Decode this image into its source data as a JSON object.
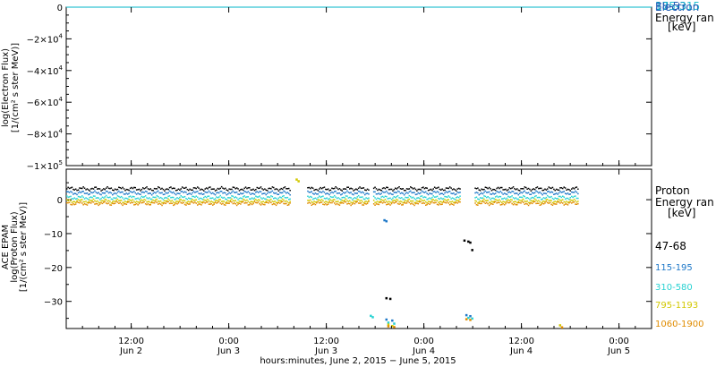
{
  "chart_data": [
    {
      "type": "line",
      "panel": "electron",
      "ylabel_lines": [
        "log(Electron Flux)",
        "[1/(cm² s ster MeV)]"
      ],
      "ylim": [
        -100000,
        0
      ],
      "yticks": [
        {
          "value": 0,
          "label": "0",
          "mant": "",
          "exp": ""
        },
        {
          "value": -20000,
          "label": "",
          "mant": "−2×10",
          "exp": "4"
        },
        {
          "value": -40000,
          "label": "",
          "mant": "−4×10",
          "exp": "4"
        },
        {
          "value": -60000,
          "label": "",
          "mant": "−6×10",
          "exp": "4"
        },
        {
          "value": -80000,
          "label": "",
          "mant": "−8×10",
          "exp": "4"
        },
        {
          "value": -100000,
          "label": "",
          "mant": "−1×10",
          "exp": "5"
        }
      ],
      "legend": {
        "lines": [
          "Electron",
          "Energy ran",
          "[keV]"
        ],
        "series_overlap": [
          "38-53",
          "175-315"
        ]
      },
      "series": [
        {
          "name": "38-53",
          "color": "#1e5ab4",
          "values": [
            [
              0,
              0
            ],
            [
              3.0,
              0
            ]
          ]
        },
        {
          "name": "175-315",
          "color": "#00b4c8",
          "values": [
            [
              0,
              0
            ],
            [
              3.0,
              0
            ]
          ]
        }
      ]
    },
    {
      "type": "scatter",
      "panel": "proton",
      "ylabel_lines": [
        "ACE EPAM",
        "log(Proton Flux)",
        "[1/(cm² s ster MeV)]"
      ],
      "ylim": [
        -38,
        9
      ],
      "yticks": [
        {
          "value": 0,
          "label": "0"
        },
        {
          "value": -10,
          "label": "−10"
        },
        {
          "value": -20,
          "label": "−20"
        },
        {
          "value": -30,
          "label": "−30"
        }
      ],
      "legend": {
        "lines": [
          "Proton",
          "Energy ran",
          "[keV]"
        ]
      },
      "series": [
        {
          "name": "47-68",
          "color": "#000000",
          "level": 3.4,
          "extra": [
            [
              2.04,
              -12.0
            ],
            [
              2.06,
              -12.3
            ],
            [
              2.07,
              -12.6
            ],
            [
              2.08,
              -14.8
            ],
            [
              1.64,
              -29.0
            ],
            [
              1.66,
              -29.2
            ]
          ]
        },
        {
          "name": "115-195",
          "color": "#1e78c8",
          "level": 2.2,
          "extra": [
            [
              1.63,
              -6.0
            ],
            [
              1.64,
              -6.3
            ],
            [
              2.05,
              -34.0
            ],
            [
              2.07,
              -34.3
            ],
            [
              1.64,
              -35.3
            ],
            [
              1.67,
              -35.6
            ]
          ]
        },
        {
          "name": "310-580",
          "color": "#28d2d2",
          "level": 0.8,
          "extra": [
            [
              1.56,
              -34.2
            ],
            [
              1.57,
              -34.6
            ],
            [
              1.65,
              -36.2
            ],
            [
              1.68,
              -36.5
            ],
            [
              2.06,
              -34.8
            ],
            [
              2.08,
              -35.0
            ]
          ]
        },
        {
          "name": "795-1193",
          "color": "#d2c800",
          "level": -0.2,
          "extra": [
            [
              1.18,
              6.0
            ],
            [
              1.19,
              5.5
            ],
            [
              2.53,
              -37.0
            ],
            [
              1.65,
              -36.8
            ],
            [
              1.67,
              -37.2
            ]
          ]
        },
        {
          "name": "1060-1900",
          "color": "#e08c00",
          "level": -0.9,
          "extra": [
            [
              1.65,
              -37.3
            ],
            [
              1.68,
              -37.5
            ],
            [
              2.05,
              -35.2
            ],
            [
              2.07,
              -35.4
            ],
            [
              2.54,
              -37.6
            ]
          ]
        }
      ],
      "gaps": [
        [
          1.15,
          1.23
        ],
        [
          1.55,
          1.57
        ],
        [
          2.02,
          2.09
        ]
      ],
      "data_end": 2.62
    }
  ],
  "x_axis": {
    "range_days": [
      0,
      3
    ],
    "ticks": [
      {
        "day": 0.333,
        "time": "12:00",
        "date": "Jun 2"
      },
      {
        "day": 0.833,
        "time": "0:00",
        "date": "Jun 3"
      },
      {
        "day": 1.333,
        "time": "12:00",
        "date": "Jun 3"
      },
      {
        "day": 1.833,
        "time": "0:00",
        "date": "Jun 4"
      },
      {
        "day": 2.333,
        "time": "12:00",
        "date": "Jun 4"
      },
      {
        "day": 2.833,
        "time": "0:00",
        "date": "Jun 5"
      }
    ],
    "title": "hours:minutes, June  2, 2015 − June  5, 2015"
  }
}
